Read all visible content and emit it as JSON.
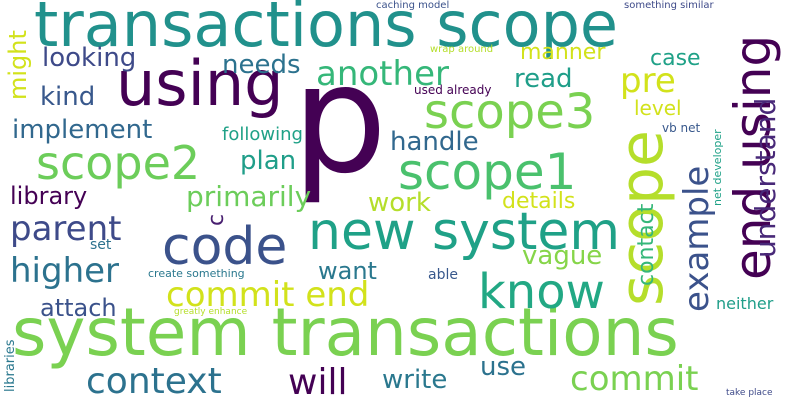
{
  "words": [
    {
      "text": "p",
      "color": "#440154"
    },
    {
      "text": "system transactions",
      "color": "#7ad151"
    },
    {
      "text": "transactions scope",
      "color": "#21918c"
    },
    {
      "text": "using",
      "color": "#440154"
    },
    {
      "text": "scope",
      "color": "#b5de2b"
    },
    {
      "text": "code",
      "color": "#3b528b"
    },
    {
      "text": "new system",
      "color": "#1fa187"
    },
    {
      "text": "end using",
      "color": "#440154"
    },
    {
      "text": "scope1",
      "color": "#4ac16d"
    },
    {
      "text": "scope3",
      "color": "#7ad151"
    },
    {
      "text": "scope2",
      "color": "#6ccd5a"
    },
    {
      "text": "know",
      "color": "#22a884"
    },
    {
      "text": "example",
      "color": "#3b528b"
    },
    {
      "text": "context",
      "color": "#2c728e"
    },
    {
      "text": "will",
      "color": "#440154"
    },
    {
      "text": "another",
      "color": "#35b779"
    },
    {
      "text": "commit end",
      "color": "#d2e21b"
    },
    {
      "text": "commit",
      "color": "#7ad151"
    },
    {
      "text": "higher",
      "color": "#2c728e"
    },
    {
      "text": "parent",
      "color": "#3e4a89"
    },
    {
      "text": "understand",
      "color": "#482878"
    },
    {
      "text": "implement",
      "color": "#31688e"
    },
    {
      "text": "handle",
      "color": "#31688e"
    },
    {
      "text": "pre",
      "color": "#d2e21b"
    },
    {
      "text": "primarily",
      "color": "#6ccd5a"
    },
    {
      "text": "looking",
      "color": "#3e4a89"
    },
    {
      "text": "needs",
      "color": "#2c728e"
    },
    {
      "text": "read",
      "color": "#1f9e89"
    },
    {
      "text": "kind",
      "color": "#38588c"
    },
    {
      "text": "might",
      "color": "#d2e21b"
    },
    {
      "text": "plan",
      "color": "#1f9e89"
    },
    {
      "text": "work",
      "color": "#b5de2b"
    },
    {
      "text": "vague",
      "color": "#86d549"
    },
    {
      "text": "want",
      "color": "#2a788e"
    },
    {
      "text": "write",
      "color": "#2a788e"
    },
    {
      "text": "use",
      "color": "#2c728e"
    },
    {
      "text": "attach",
      "color": "#3b528b"
    },
    {
      "text": "library",
      "color": "#440154"
    },
    {
      "text": "contact",
      "color": "#35b779"
    },
    {
      "text": "details",
      "color": "#d2e21b"
    },
    {
      "text": "manner",
      "color": "#d2e21b"
    },
    {
      "text": "case",
      "color": "#1fa187"
    },
    {
      "text": "level",
      "color": "#d2e21b"
    },
    {
      "text": "following",
      "color": "#1fa187"
    },
    {
      "text": "c",
      "color": "#481f70"
    },
    {
      "text": "neither",
      "color": "#1f9e89"
    },
    {
      "text": "libraries",
      "color": "#2a788e"
    },
    {
      "text": "used already",
      "color": "#440154"
    },
    {
      "text": "vb net",
      "color": "#38588c"
    },
    {
      "text": "net developer",
      "color": "#1fa187"
    },
    {
      "text": "able",
      "color": "#38588c"
    },
    {
      "text": "set",
      "color": "#2c728e"
    },
    {
      "text": "create something",
      "color": "#2a788e"
    },
    {
      "text": "caching model",
      "color": "#3b528b"
    },
    {
      "text": "something similar",
      "color": "#3e4a89"
    },
    {
      "text": "wrap around",
      "color": "#b5de2b"
    },
    {
      "text": "take place",
      "color": "#3e4a89"
    },
    {
      "text": "greatly enhance",
      "color": "#b5de2b"
    }
  ]
}
